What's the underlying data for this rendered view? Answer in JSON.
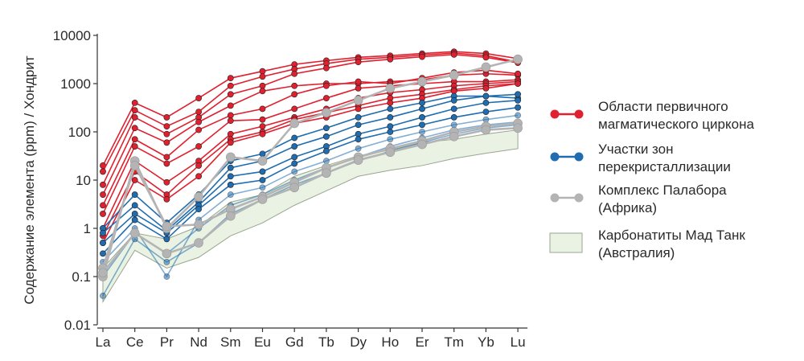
{
  "chart_data": {
    "type": "line",
    "ylabel": "Содержание элемента (ppm) / Хондрит",
    "yscale": "log",
    "ylim": [
      0.01,
      10000
    ],
    "ytick_labels": [
      "10000",
      "1000",
      "100",
      "10",
      "1",
      "0.1",
      "0.01"
    ],
    "ytick_values": [
      10000,
      1000,
      100,
      10,
      1,
      0.1,
      0.01
    ],
    "categories": [
      "La",
      "Ce",
      "Pr",
      "Nd",
      "Sm",
      "Eu",
      "Gd",
      "Tb",
      "Dy",
      "Ho",
      "Er",
      "Tm",
      "Yb",
      "Lu"
    ],
    "legend": {
      "position": "right",
      "entries": [
        {
          "label_lines": [
            "Области первичного",
            "магматического циркона"
          ],
          "kind": "line",
          "color": "#e0202e"
        },
        {
          "label_lines": [
            "Участки зон",
            "перекристаллизации"
          ],
          "kind": "line",
          "color": "#1f6db0"
        },
        {
          "label_lines": [
            "Комплекс Палабора",
            "(Африка)"
          ],
          "kind": "line",
          "color": "#b4b4b4"
        },
        {
          "label_lines": [
            "Карбонатиты Мад Танк",
            "(Австралия)"
          ],
          "kind": "area",
          "color": "#eaf3e3"
        }
      ]
    },
    "shaded_region": {
      "name": "Карбонатиты Мад Танк (Австралия)",
      "upper": [
        0.15,
        0.8,
        0.6,
        1.1,
        3.5,
        5,
        12,
        20,
        32,
        42,
        60,
        70,
        90,
        110
      ],
      "lower": [
        0.03,
        0.35,
        0.15,
        0.25,
        0.7,
        1.3,
        3,
        6,
        12,
        16,
        20,
        28,
        36,
        45
      ]
    },
    "groups": [
      {
        "color": "#e0202e",
        "series": [
          [
            20,
            400,
            200,
            500,
            1300,
            1800,
            2500,
            3000,
            3500,
            3800,
            4200,
            4600,
            4200,
            3300
          ],
          [
            15,
            280,
            130,
            260,
            900,
            1400,
            2000,
            2600,
            3200,
            3500,
            3900,
            4300,
            3800,
            2800
          ],
          [
            8,
            200,
            90,
            200,
            600,
            900,
            1600,
            2100,
            2800,
            3200,
            3600,
            4000,
            3500,
            2700
          ],
          [
            5,
            120,
            60,
            160,
            350,
            700,
            900,
            1000,
            1000,
            1100,
            1200,
            1500,
            1600,
            1500
          ],
          [
            3,
            70,
            30,
            110,
            220,
            300,
            600,
            900,
            1100,
            1000,
            1300,
            1700,
            1900,
            1600
          ],
          [
            2,
            50,
            22,
            50,
            170,
            180,
            300,
            500,
            800,
            900,
            1000,
            1100,
            1100,
            1200
          ],
          [
            1,
            25,
            9,
            25,
            90,
            130,
            200,
            300,
            500,
            650,
            750,
            900,
            1000,
            1100
          ],
          [
            0.7,
            15,
            5,
            20,
            70,
            100,
            180,
            250,
            350,
            500,
            600,
            750,
            900,
            1000
          ],
          [
            0.5,
            10,
            4,
            12,
            60,
            90,
            150,
            200,
            300,
            400,
            500,
            700,
            800,
            1000
          ]
        ]
      },
      {
        "color": "#1f6db0",
        "series": [
          [
            1,
            5,
            1.3,
            5,
            25,
            35,
            75,
            120,
            200,
            300,
            400,
            550,
            550,
            500
          ],
          [
            0.8,
            3,
            0.9,
            3.5,
            18,
            25,
            50,
            80,
            140,
            200,
            300,
            450,
            550,
            600
          ],
          [
            0.5,
            2,
            0.8,
            3,
            12,
            15,
            30,
            50,
            90,
            130,
            200,
            300,
            400,
            450
          ],
          [
            0.3,
            1.5,
            0.6,
            2.5,
            8,
            10,
            22,
            40,
            70,
            100,
            140,
            200,
            260,
            320
          ],
          [
            0.2,
            1,
            0.1,
            1.5,
            5,
            7,
            15,
            25,
            45,
            70,
            100,
            140,
            180,
            220
          ],
          [
            0.1,
            0.8,
            0.3,
            1,
            3,
            5,
            10,
            18,
            30,
            50,
            75,
            110,
            140,
            160
          ],
          [
            0.04,
            0.6,
            0.2,
            0.5,
            2,
            4,
            8,
            14,
            25,
            40,
            60,
            90,
            120,
            140
          ]
        ]
      },
      {
        "color": "#b4b4b4",
        "series": [
          [
            0.1,
            25,
            1,
            4.5,
            30,
            25,
            150,
            250,
            450,
            800,
            1100,
            1500,
            2200,
            3200
          ],
          [
            0.15,
            20,
            1.1,
            1.2,
            2.5,
            4.5,
            9,
            18,
            30,
            45,
            65,
            100,
            130,
            150
          ],
          [
            0.12,
            0.8,
            0.3,
            0.5,
            1.8,
            4,
            7,
            14,
            26,
            38,
            55,
            80,
            110,
            120
          ]
        ]
      }
    ]
  }
}
